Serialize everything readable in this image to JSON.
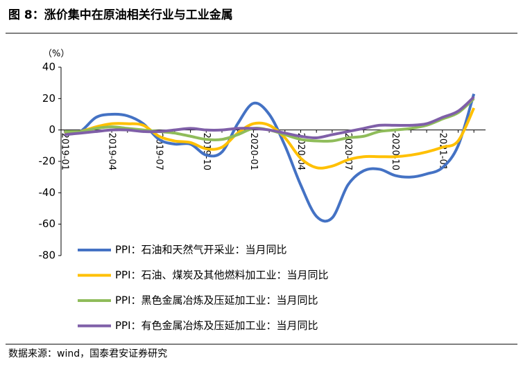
{
  "chart_data": {
    "type": "line",
    "title": "图 8：涨价集中在原油相关行业与工业金属",
    "y_label": "（%）",
    "source": "数据来源：wind，国泰君安证券研究",
    "categories": [
      "2019-01",
      null,
      null,
      "2019-04",
      null,
      null,
      "2019-07",
      null,
      null,
      "2019-10",
      null,
      null,
      "2020-01",
      null,
      null,
      "2020-04",
      null,
      null,
      "2020-07",
      null,
      null,
      "2020-10",
      null,
      null,
      "2021-01",
      null,
      null
    ],
    "series": [
      {
        "name": "PPI：石油和天然气开采业：当月同比",
        "color": "#4472c4",
        "values": [
          -3,
          -1,
          8,
          10,
          9,
          4,
          -6,
          -9,
          -9,
          -16,
          -14,
          4,
          17,
          10,
          -10,
          -35,
          -55,
          -56,
          -35,
          -26,
          -25,
          -29,
          -30,
          -28,
          -24,
          -10,
          23
        ]
      },
      {
        "name": "PPI：石油、煤炭及其他燃料加工业：当月同比",
        "color": "#ffc000",
        "values": [
          -2,
          -1,
          2,
          4,
          4,
          3,
          -4,
          -7,
          -8,
          -12,
          -11,
          -2,
          4,
          3,
          -5,
          -18,
          -24,
          -23,
          -19,
          -17,
          -17,
          -17,
          -16,
          -14,
          -11,
          -7,
          14
        ]
      },
      {
        "name": "PPI：黑色金属冶炼及压延加工业：当月同比",
        "color": "#8fbc5a",
        "values": [
          -1,
          -1,
          1,
          2,
          1,
          0,
          -1,
          -2,
          -4,
          -6,
          -6,
          -3,
          1,
          0,
          -3,
          -6,
          -7,
          -7,
          -5,
          -4,
          -1,
          0,
          1,
          3,
          7,
          11,
          20
        ]
      },
      {
        "name": "PPI：有色金属冶炼及压延加工业：当月同比",
        "color": "#7f5fa8",
        "values": [
          -3,
          -2,
          -1,
          0,
          0,
          -1,
          -1,
          0,
          1,
          0,
          0,
          1,
          1,
          0,
          -2,
          -4,
          -5,
          -3,
          -1,
          1,
          3,
          3,
          3,
          4,
          8,
          12,
          21
        ]
      }
    ],
    "ylim": [
      -80,
      40
    ],
    "yticks": [
      -80,
      -60,
      -40,
      -20,
      0,
      20,
      40
    ]
  }
}
